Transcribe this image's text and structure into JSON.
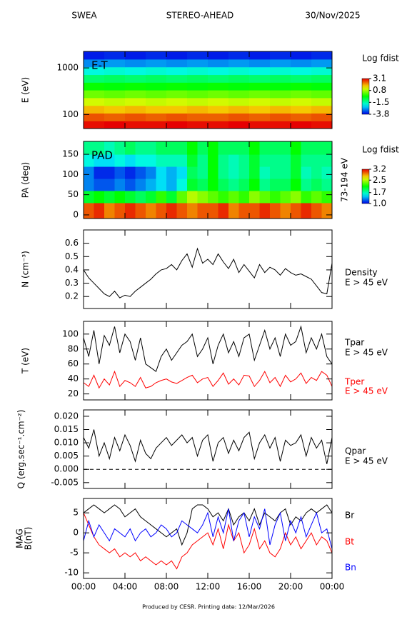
{
  "header": {
    "instrument": "SWEA",
    "spacecraft": "STEREO-AHEAD",
    "date": "30/Nov/2025"
  },
  "footer": "Produced by CESR.   Printing date: 12/Mar/2026",
  "xaxis": {
    "xlim": [
      0,
      24
    ],
    "xticks": [
      {
        "value": 0,
        "label": "00:00"
      },
      {
        "value": 4,
        "label": "04:00"
      },
      {
        "value": 8,
        "label": "08:00"
      },
      {
        "value": 12,
        "label": "12:00"
      },
      {
        "value": 16,
        "label": "16:00"
      },
      {
        "value": 20,
        "label": "20:00"
      },
      {
        "value": 24,
        "label": "00:00"
      }
    ]
  },
  "chart_data": [
    {
      "type": "heatmap",
      "title": "E-T",
      "ylabel": "E (eV)",
      "log_y": true,
      "ylim": [
        50,
        2260
      ],
      "yticks": [
        100,
        1000
      ],
      "colormap": "rainbow",
      "colorbar": {
        "label": "Log fdist",
        "zlim": [
          -3.8,
          3.1
        ],
        "ticks": [
          3.1,
          0.8,
          -1.5,
          -3.8
        ]
      },
      "x_edges": [
        0,
        2,
        4,
        6,
        8,
        10,
        12,
        14,
        16,
        18,
        20,
        22,
        24
      ],
      "y_edges": [
        50,
        73,
        107,
        156,
        229,
        335,
        490,
        717,
        1050,
        1540,
        2260
      ],
      "z": [
        [
          3.0,
          3.1,
          3.0,
          3.0,
          3.1,
          3.0,
          3.0,
          3.1,
          3.0,
          3.0,
          3.1,
          3.0
        ],
        [
          2.5,
          2.4,
          2.5,
          2.4,
          2.5,
          2.4,
          2.4,
          2.5,
          2.4,
          2.5,
          2.4,
          2.5
        ],
        [
          1.8,
          1.7,
          1.8,
          1.7,
          1.7,
          1.8,
          1.7,
          1.8,
          1.7,
          1.8,
          1.7,
          1.8
        ],
        [
          1.1,
          1.0,
          1.1,
          1.0,
          1.1,
          1.0,
          1.1,
          1.0,
          1.1,
          1.0,
          1.1,
          1.0
        ],
        [
          0.4,
          0.3,
          0.4,
          0.3,
          0.4,
          0.3,
          0.4,
          0.3,
          0.4,
          0.3,
          0.4,
          0.3
        ],
        [
          -0.3,
          -0.4,
          -0.3,
          -0.4,
          -0.3,
          -0.4,
          -0.3,
          -0.4,
          -0.3,
          -0.4,
          -0.3,
          -0.4
        ],
        [
          -1.1,
          -1.0,
          -1.1,
          -1.0,
          -1.1,
          -1.0,
          -1.1,
          -1.0,
          -1.1,
          -1.0,
          -1.1,
          -1.0
        ],
        [
          -1.9,
          -1.8,
          -1.9,
          -1.8,
          -1.9,
          -1.8,
          -1.9,
          -1.8,
          -1.9,
          -1.8,
          -1.9,
          -1.8
        ],
        [
          -2.8,
          -2.7,
          -2.8,
          -2.7,
          -2.8,
          -2.7,
          -2.8,
          -2.7,
          -2.8,
          -2.7,
          -2.8,
          -2.7
        ],
        [
          -3.6,
          -3.5,
          -3.6,
          -3.5,
          -3.6,
          -3.5,
          -3.6,
          -3.5,
          -3.6,
          -3.5,
          -3.6,
          -3.5
        ]
      ]
    },
    {
      "type": "heatmap",
      "title": "PAD",
      "ylabel": "PA (deg)",
      "log_y": false,
      "ylim": [
        -9,
        182
      ],
      "yticks": [
        0,
        50,
        100,
        150
      ],
      "energy_label": "73-194 eV",
      "colormap": "rainbow",
      "colorbar": {
        "label": "Log fdist",
        "zlim": [
          1.0,
          3.2
        ],
        "ticks": [
          3.2,
          2.5,
          1.7,
          {
            "value": 1.0,
            "label": "1.0"
          }
        ]
      },
      "x_edges": [
        0,
        1,
        2,
        3,
        4,
        5,
        6,
        7,
        8,
        9,
        10,
        11,
        12,
        13,
        14,
        15,
        16,
        17,
        18,
        19,
        20,
        21,
        22,
        23,
        24
      ],
      "y_edges": [
        -9,
        30,
        60,
        90,
        120,
        150,
        182
      ],
      "z": [
        [
          3.0,
          3.1,
          2.9,
          3.0,
          3.1,
          3.0,
          2.9,
          3.0,
          3.1,
          3.0,
          2.9,
          3.0,
          3.0,
          3.1,
          2.9,
          3.0,
          3.0,
          3.1,
          3.0,
          2.9,
          3.0,
          3.1,
          3.0,
          2.9
        ],
        [
          2.0,
          2.1,
          2.0,
          2.1,
          2.0,
          1.9,
          2.0,
          2.2,
          2.0,
          2.3,
          2.5,
          2.4,
          2.3,
          2.2,
          2.3,
          2.2,
          2.4,
          2.3,
          2.2,
          2.3,
          2.4,
          2.2,
          2.3,
          2.2
        ],
        [
          1.3,
          1.2,
          1.2,
          1.3,
          1.2,
          1.3,
          1.4,
          1.5,
          1.4,
          1.6,
          2.0,
          1.9,
          2.1,
          1.9,
          1.8,
          1.9,
          2.1,
          1.8,
          1.9,
          1.9,
          2.1,
          1.8,
          1.9,
          1.8
        ],
        [
          1.3,
          1.1,
          1.1,
          1.2,
          1.1,
          1.2,
          1.3,
          1.5,
          1.4,
          1.5,
          1.9,
          1.8,
          2.1,
          1.8,
          1.7,
          1.8,
          2.0,
          1.7,
          1.8,
          1.8,
          2.0,
          1.7,
          1.8,
          1.7
        ],
        [
          1.6,
          1.5,
          1.5,
          1.6,
          1.5,
          1.6,
          1.6,
          1.7,
          1.7,
          1.7,
          2.0,
          1.8,
          2.1,
          1.8,
          1.7,
          1.8,
          2.0,
          1.8,
          1.8,
          1.8,
          2.0,
          1.8,
          1.8,
          1.8
        ],
        [
          1.8,
          1.8,
          1.7,
          1.8,
          1.9,
          1.8,
          1.8,
          1.9,
          1.9,
          1.9,
          2.1,
          1.9,
          2.1,
          1.9,
          1.9,
          1.9,
          2.1,
          1.9,
          1.9,
          1.9,
          2.1,
          1.9,
          1.9,
          1.9
        ]
      ]
    },
    {
      "type": "line",
      "ylabel": "N (cm⁻³)",
      "ylim": [
        0.11,
        0.7
      ],
      "yticks": [
        0.2,
        0.3,
        0.4,
        0.5,
        0.6
      ],
      "x": [
        0,
        0.5,
        1,
        1.5,
        2,
        2.5,
        3,
        3.5,
        4,
        4.5,
        5,
        5.5,
        6,
        6.5,
        7,
        7.5,
        8,
        8.5,
        9,
        9.5,
        10,
        10.5,
        11,
        11.5,
        12,
        12.5,
        13,
        13.5,
        14,
        14.5,
        15,
        15.5,
        16,
        16.5,
        17,
        17.5,
        18,
        18.5,
        19,
        19.5,
        20,
        20.5,
        21,
        21.5,
        22,
        22.5,
        23,
        23.5,
        24
      ],
      "series": [
        {
          "name": "Density",
          "energy_range": "E > 45 eV",
          "color": "#000000",
          "values": [
            0.4,
            0.34,
            0.3,
            0.26,
            0.22,
            0.2,
            0.24,
            0.19,
            0.21,
            0.2,
            0.24,
            0.27,
            0.3,
            0.33,
            0.37,
            0.4,
            0.41,
            0.44,
            0.4,
            0.47,
            0.52,
            0.42,
            0.56,
            0.45,
            0.48,
            0.44,
            0.52,
            0.46,
            0.41,
            0.48,
            0.38,
            0.44,
            0.39,
            0.34,
            0.44,
            0.38,
            0.42,
            0.4,
            0.36,
            0.41,
            0.38,
            0.36,
            0.37,
            0.35,
            0.33,
            0.28,
            0.23,
            0.22,
            0.45
          ]
        }
      ]
    },
    {
      "type": "line",
      "ylabel": "T (eV)",
      "ylim": [
        12,
        117
      ],
      "yticks": [
        20,
        40,
        60,
        80,
        100
      ],
      "x": [
        0,
        0.5,
        1,
        1.5,
        2,
        2.5,
        3,
        3.5,
        4,
        4.5,
        5,
        5.5,
        6,
        6.5,
        7,
        7.5,
        8,
        8.5,
        9,
        9.5,
        10,
        10.5,
        11,
        11.5,
        12,
        12.5,
        13,
        13.5,
        14,
        14.5,
        15,
        15.5,
        16,
        16.5,
        17,
        17.5,
        18,
        18.5,
        19,
        19.5,
        20,
        20.5,
        21,
        21.5,
        22,
        22.5,
        23,
        23.5,
        24
      ],
      "series": [
        {
          "name": "Tpar",
          "energy_range": "E > 45 eV",
          "color": "#000000",
          "values": [
            95,
            70,
            105,
            60,
            98,
            85,
            110,
            75,
            100,
            90,
            65,
            95,
            60,
            55,
            50,
            70,
            80,
            65,
            75,
            85,
            90,
            100,
            70,
            80,
            95,
            60,
            85,
            100,
            75,
            90,
            70,
            95,
            100,
            65,
            85,
            105,
            80,
            95,
            70,
            100,
            85,
            90,
            110,
            75,
            95,
            80,
            100,
            70,
            60
          ]
        },
        {
          "name": "Tper",
          "energy_range": "E > 45 eV",
          "color": "#ff0000",
          "values": [
            35,
            30,
            45,
            28,
            40,
            32,
            50,
            30,
            38,
            35,
            30,
            42,
            28,
            30,
            35,
            38,
            40,
            36,
            34,
            38,
            42,
            45,
            35,
            40,
            42,
            30,
            38,
            48,
            33,
            40,
            32,
            45,
            44,
            30,
            38,
            50,
            35,
            42,
            30,
            45,
            36,
            40,
            48,
            34,
            42,
            38,
            50,
            45,
            30
          ]
        }
      ]
    },
    {
      "type": "line",
      "ylabel": "Q (erg.sec⁻¹.cm⁻²)",
      "ylim": [
        -0.0072,
        0.0224
      ],
      "reference_line": 0,
      "yticks": [
        {
          "value": 0.02,
          "label": "0.020"
        },
        0.015,
        {
          "value": 0.01,
          "label": "0.010"
        },
        0.005,
        {
          "value": 0,
          "label": "0.000"
        },
        -0.005
      ],
      "x": [
        0,
        0.5,
        1,
        1.5,
        2,
        2.5,
        3,
        3.5,
        4,
        4.5,
        5,
        5.5,
        6,
        6.5,
        7,
        7.5,
        8,
        8.5,
        9,
        9.5,
        10,
        10.5,
        11,
        11.5,
        12,
        12.5,
        13,
        13.5,
        14,
        14.5,
        15,
        15.5,
        16,
        16.5,
        17,
        17.5,
        18,
        18.5,
        19,
        19.5,
        20,
        20.5,
        21,
        21.5,
        22,
        22.5,
        23,
        23.5,
        24
      ],
      "series": [
        {
          "name": "Qpar",
          "energy_range": "E > 45 eV",
          "color": "#000000",
          "values": [
            0.012,
            0.008,
            0.015,
            0.005,
            0.01,
            0.004,
            0.012,
            0.007,
            0.013,
            0.009,
            0.003,
            0.011,
            0.006,
            0.004,
            0.008,
            0.01,
            0.012,
            0.009,
            0.011,
            0.013,
            0.01,
            0.012,
            0.005,
            0.011,
            0.013,
            0.003,
            0.01,
            0.012,
            0.006,
            0.011,
            0.007,
            0.012,
            0.014,
            0.004,
            0.01,
            0.013,
            0.008,
            0.012,
            0.003,
            0.011,
            0.009,
            0.01,
            0.013,
            0.005,
            0.012,
            0.008,
            0.011,
            0.002,
            0.012
          ]
        }
      ]
    },
    {
      "type": "line",
      "ylabel": [
        "MAG",
        "B(nT)"
      ],
      "ylim": [
        -11.4,
        8.6
      ],
      "yticks": [
        -10,
        -5,
        0,
        5
      ],
      "x": [
        0,
        0.5,
        1,
        1.5,
        2,
        2.5,
        3,
        3.5,
        4,
        4.5,
        5,
        5.5,
        6,
        6.5,
        7,
        7.5,
        8,
        8.5,
        9,
        9.5,
        10,
        10.5,
        11,
        11.5,
        12,
        12.5,
        13,
        13.5,
        14,
        14.5,
        15,
        15.5,
        16,
        16.5,
        17,
        17.5,
        18,
        18.5,
        19,
        19.5,
        20,
        20.5,
        21,
        21.5,
        22,
        22.5,
        23,
        23.5,
        24
      ],
      "series": [
        {
          "name": "Br",
          "color": "#000000",
          "values": [
            5,
            6,
            7,
            6,
            5,
            6,
            7,
            6,
            4,
            5,
            6,
            4,
            3,
            2,
            1,
            0,
            -1,
            0,
            1,
            -3,
            0,
            6,
            7,
            7,
            6,
            4,
            5,
            3,
            6,
            2,
            4,
            5,
            3,
            6,
            2,
            5,
            4,
            3,
            5,
            6,
            2,
            4,
            3,
            5,
            6,
            5,
            6,
            7,
            5
          ]
        },
        {
          "name": "Bt",
          "color": "#ff0000",
          "values": [
            5,
            2,
            -1,
            -3,
            -4,
            -5,
            -4,
            -6,
            -5,
            -6,
            -5,
            -7,
            -6,
            -7,
            -8,
            -7,
            -8,
            -7,
            -9,
            -6,
            -5,
            -3,
            -2,
            -1,
            0,
            -3,
            1,
            -4,
            2,
            -2,
            0,
            -5,
            -3,
            1,
            -4,
            -2,
            -5,
            -6,
            -4,
            0,
            -3,
            -1,
            -4,
            -2,
            0,
            -3,
            -1,
            -2,
            -5
          ]
        },
        {
          "name": "Bn",
          "color": "#0000ff",
          "values": [
            -2,
            3,
            -1,
            2,
            0,
            -2,
            1,
            0,
            -1,
            1,
            -2,
            0,
            1,
            -1,
            0,
            2,
            1,
            -1,
            0,
            3,
            2,
            1,
            0,
            2,
            5,
            -1,
            4,
            0,
            6,
            -2,
            3,
            5,
            -1,
            4,
            1,
            6,
            -3,
            2,
            5,
            -2,
            3,
            0,
            4,
            -1,
            2,
            5,
            0,
            1,
            -4
          ]
        }
      ]
    }
  ]
}
